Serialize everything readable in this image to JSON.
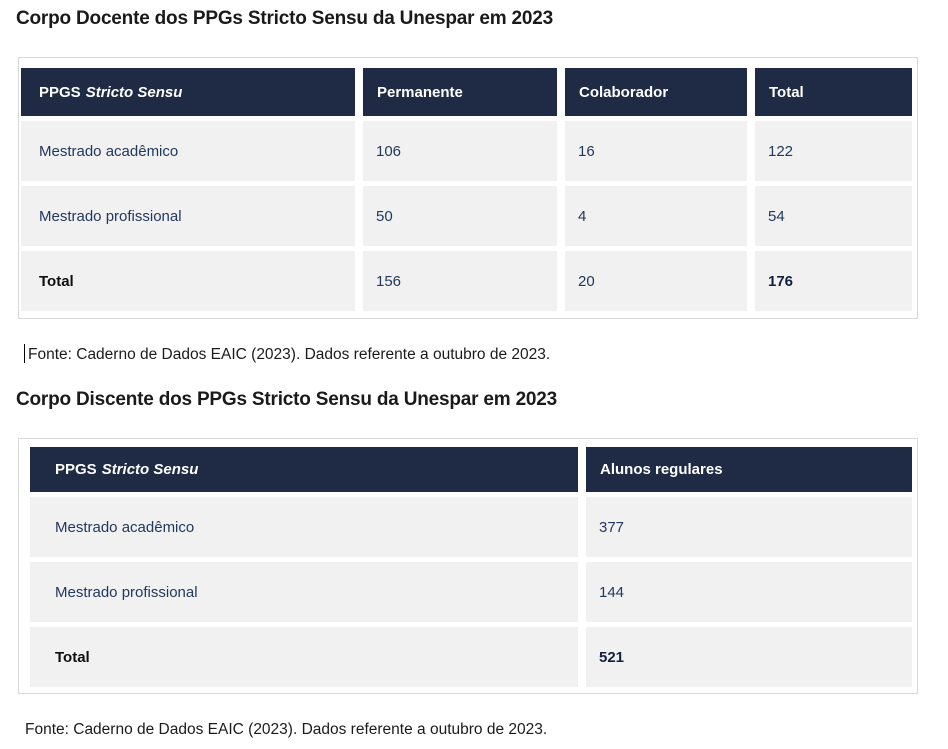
{
  "colors": {
    "header_bg": "#1f2a44",
    "header_text": "#ffffff",
    "cell_bg": "#f1f1f1",
    "cell_text": "#22385c",
    "total_label_text": "#101010",
    "total_value_text": "#12213d",
    "title_text": "#1a1a1a",
    "table_outline": "#d8d8d8"
  },
  "tables": [
    {
      "title": "Corpo Docente dos PPGs Stricto Sensu da Unespar em 2023",
      "header": {
        "label_prefix": "PPGS",
        "label_italic": "Stricto Sensu",
        "columns": [
          "Permanente",
          "Colaborador",
          "Total"
        ]
      },
      "rows": [
        {
          "label": "Mestrado acadêmico",
          "values": [
            "106",
            "16",
            "122"
          ],
          "is_total": false
        },
        {
          "label": "Mestrado profissional",
          "values": [
            "50",
            "4",
            "54"
          ],
          "is_total": false
        },
        {
          "label": "Total",
          "values": [
            "156",
            "20",
            "176"
          ],
          "is_total": true
        }
      ],
      "fonte": "Fonte: Caderno de Dados EAIC (2023). Dados referente a outubro de 2023."
    },
    {
      "title": "Corpo Discente dos PPGs Stricto Sensu da Unespar em 2023",
      "header": {
        "label_prefix": "PPGS",
        "label_italic": "Stricto Sensu",
        "columns": [
          "Alunos regulares"
        ]
      },
      "rows": [
        {
          "label": "Mestrado acadêmico",
          "values": [
            "377"
          ],
          "is_total": false
        },
        {
          "label": "Mestrado profissional",
          "values": [
            "144"
          ],
          "is_total": false
        },
        {
          "label": "Total",
          "values": [
            "521"
          ],
          "is_total": true
        }
      ],
      "fonte": "Fonte: Caderno de Dados EAIC (2023). Dados referente a outubro de 2023."
    }
  ]
}
